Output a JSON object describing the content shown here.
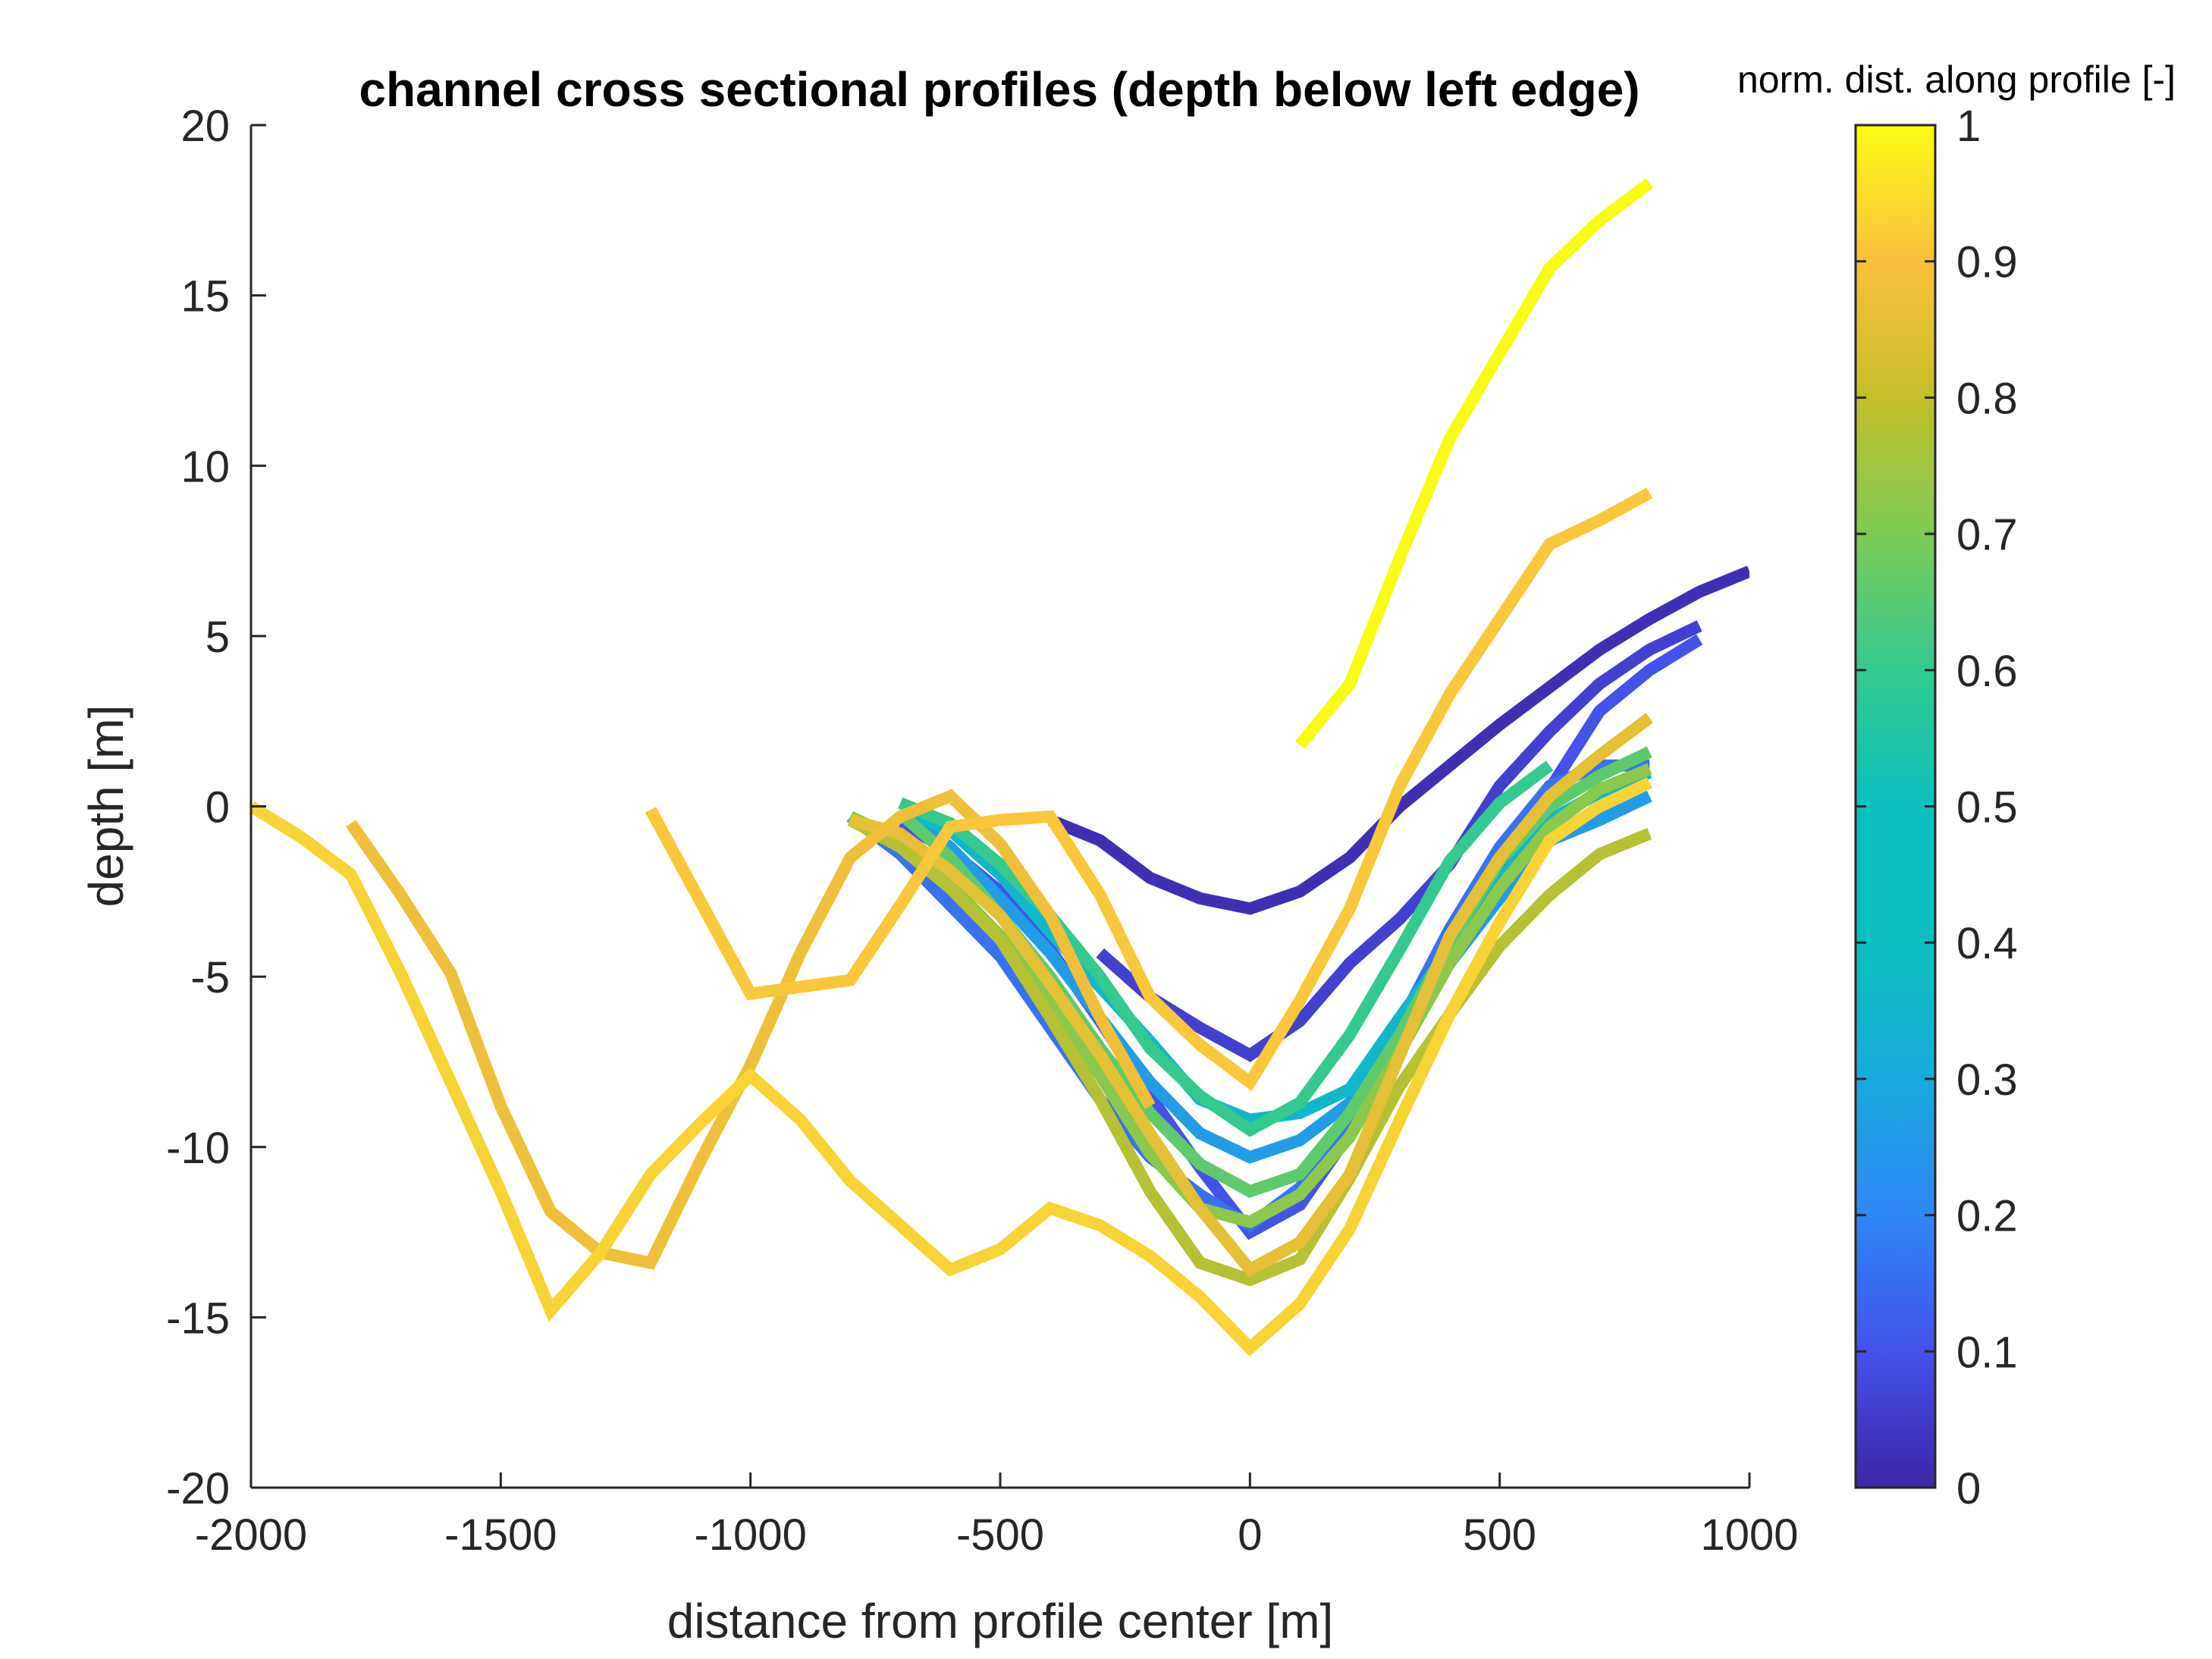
{
  "chart_data": {
    "type": "line",
    "title": "channel cross sectional profiles (depth below left edge)",
    "xlabel": "distance from profile center [m]",
    "ylabel": "depth [m]",
    "xlim": [
      -2000,
      1000
    ],
    "ylim": [
      -20,
      20
    ],
    "xticks": [
      -2000,
      -1500,
      -1000,
      -500,
      0,
      500,
      1000
    ],
    "yticks": [
      -20,
      -15,
      -10,
      -5,
      0,
      5,
      10,
      15,
      20
    ],
    "xtick_labels": [
      "-2000",
      "-1500",
      "-1000",
      "-500",
      "0",
      "500",
      "1000"
    ],
    "ytick_labels": [
      "-20",
      "-15",
      "-10",
      "-5",
      "0",
      "5",
      "10",
      "15",
      "20"
    ],
    "grid": false,
    "colorbar": {
      "label": "norm. dist. along profile [-]",
      "range": [
        0,
        1
      ],
      "ticks": [
        0,
        0.1,
        0.2,
        0.3,
        0.4,
        0.5,
        0.6,
        0.7,
        0.8,
        0.9,
        1
      ],
      "tick_labels": [
        "0",
        "0.1",
        "0.2",
        "0.3",
        "0.4",
        "0.5",
        "0.6",
        "0.7",
        "0.8",
        "0.9",
        "1"
      ],
      "colormap": [
        "#3e26a8",
        "#4352e9",
        "#2e87f7",
        "#1aaadd",
        "#0bbfbd",
        "#34c98f",
        "#7ccb55",
        "#c4bf2a",
        "#fbbf3e",
        "#f8d334",
        "#f9fb15"
      ]
    },
    "series": [
      {
        "color_value": 0.02,
        "x": [
          -400,
          -300,
          -200,
          -100,
          0,
          100,
          200,
          300,
          400,
          500,
          600,
          700,
          800,
          900,
          1000
        ],
        "y": [
          -0.4,
          -1.0,
          -2.1,
          -2.7,
          -3.0,
          -2.5,
          -1.5,
          0.0,
          1.2,
          2.4,
          3.5,
          4.6,
          5.5,
          6.3,
          6.9
        ]
      },
      {
        "color_value": 0.06,
        "x": [
          -300,
          -200,
          -100,
          0,
          100,
          200,
          300,
          400,
          500,
          600,
          700,
          800,
          900
        ],
        "y": [
          -4.3,
          -5.6,
          -6.5,
          -7.3,
          -6.3,
          -4.6,
          -3.3,
          -1.7,
          0.6,
          2.2,
          3.6,
          4.6,
          5.3
        ]
      },
      {
        "color_value": 0.1,
        "x": [
          -700,
          -600,
          -500,
          -400,
          -300,
          -200,
          -100,
          0,
          100,
          200,
          300,
          400,
          500,
          600,
          700,
          800,
          900
        ],
        "y": [
          -0.5,
          -1.3,
          -2.5,
          -4.2,
          -6.3,
          -8.5,
          -10.6,
          -12.5,
          -11.7,
          -9.6,
          -7.2,
          -4.5,
          -1.7,
          0.5,
          2.8,
          4.0,
          4.9
        ]
      },
      {
        "color_value": 0.16,
        "x": [
          -800,
          -700,
          -600,
          -500,
          -400,
          -300,
          -200,
          -100,
          0,
          100,
          200,
          300,
          400,
          500,
          600,
          700,
          800
        ],
        "y": [
          -0.3,
          -1.4,
          -2.9,
          -4.4,
          -6.5,
          -8.6,
          -10.3,
          -11.4,
          -12.3,
          -11.2,
          -9.2,
          -6.4,
          -3.6,
          -1.2,
          0.6,
          1.2,
          1.2
        ]
      },
      {
        "color_value": 0.26,
        "x": [
          -700,
          -600,
          -500,
          -400,
          -300,
          -200,
          -100,
          0,
          100,
          200,
          300,
          400,
          500,
          600,
          700,
          800
        ],
        "y": [
          -0.1,
          -1.2,
          -2.7,
          -4.3,
          -6.2,
          -8.1,
          -9.6,
          -10.3,
          -9.8,
          -8.7,
          -6.8,
          -4.6,
          -2.7,
          -1.0,
          -0.4,
          0.3
        ]
      },
      {
        "color_value": 0.36,
        "x": [
          -700,
          -600,
          -500,
          -400,
          -300,
          -200,
          -100,
          0,
          100,
          200,
          300,
          400,
          500,
          600,
          700,
          800
        ],
        "y": [
          -0.1,
          -0.7,
          -2.0,
          -3.7,
          -5.3,
          -6.9,
          -8.6,
          -9.2,
          -9.0,
          -8.3,
          -6.2,
          -4.2,
          -2.2,
          -0.4,
          0.4,
          1.0
        ]
      },
      {
        "color_value": 0.5,
        "x": [
          -700,
          -600,
          -500,
          -400,
          -300,
          -200,
          -100,
          0,
          100,
          200,
          300,
          400,
          500,
          600
        ],
        "y": [
          0.1,
          -0.5,
          -1.7,
          -3.2,
          -5.0,
          -7.1,
          -8.5,
          -9.5,
          -8.7,
          -6.7,
          -4.2,
          -1.6,
          0.1,
          1.2
        ]
      },
      {
        "color_value": 0.56,
        "x": [
          -700,
          -600,
          -500,
          -400,
          -300,
          -200,
          -100,
          0,
          100,
          200,
          300,
          400,
          500,
          600,
          700,
          800
        ],
        "y": [
          -0.2,
          -1.5,
          -3.2,
          -5.0,
          -7.1,
          -9.0,
          -10.5,
          -11.3,
          -10.8,
          -9.0,
          -6.7,
          -4.0,
          -1.6,
          0.0,
          0.9,
          1.6
        ]
      },
      {
        "color_value": 0.62,
        "x": [
          -800,
          -700,
          -600,
          -500,
          -400,
          -300,
          -200,
          -100,
          0,
          100,
          200,
          300,
          400,
          500,
          600,
          700,
          800
        ],
        "y": [
          -0.3,
          -1.0,
          -2.3,
          -3.8,
          -5.8,
          -7.9,
          -10.2,
          -11.8,
          -12.2,
          -11.4,
          -9.7,
          -7.2,
          -4.6,
          -2.4,
          -0.6,
          0.5,
          1.1
        ]
      },
      {
        "color_value": 0.68,
        "x": [
          -800,
          -700,
          -600,
          -500,
          -400,
          -300,
          -200,
          -100,
          0,
          100,
          200,
          300,
          400,
          500,
          600,
          700,
          800
        ],
        "y": [
          -0.4,
          -1.2,
          -2.4,
          -3.9,
          -6.2,
          -8.6,
          -11.3,
          -13.4,
          -13.9,
          -13.3,
          -10.9,
          -8.2,
          -6.1,
          -4.1,
          -2.6,
          -1.4,
          -0.8
        ]
      },
      {
        "color_value": 0.76,
        "x": [
          -800,
          -700,
          -600,
          -500,
          -400,
          -300,
          -200,
          -100,
          0,
          100,
          200,
          300,
          400,
          500,
          600,
          700,
          800
        ],
        "y": [
          -0.4,
          -0.8,
          -1.9,
          -3.2,
          -5.2,
          -7.3,
          -9.6,
          -11.8,
          -13.6,
          -12.8,
          -10.8,
          -7.3,
          -3.8,
          -1.5,
          0.3,
          1.5,
          2.6
        ]
      },
      {
        "color_value": 0.78,
        "x": [
          -1800,
          -1700,
          -1600,
          -1500,
          -1400,
          -1300,
          -1200,
          -1100,
          -1000,
          -900,
          -800,
          -700,
          -600,
          -500,
          -400,
          -300,
          -200
        ],
        "y": [
          -0.5,
          -2.6,
          -4.9,
          -8.8,
          -11.9,
          -13.1,
          -13.4,
          -10.4,
          -7.6,
          -4.3,
          -1.5,
          -0.3,
          0.3,
          -1.1,
          -3.2,
          -6.2,
          -8.8
        ]
      },
      {
        "color_value": 0.84,
        "x": [
          -1200,
          -1100,
          -1000,
          -900,
          -800,
          -700,
          -600,
          -500,
          -400,
          -300,
          -200,
          -100,
          0,
          100,
          200,
          300,
          400,
          500,
          600,
          700,
          800
        ],
        "y": [
          -0.1,
          -2.8,
          -5.5,
          -5.3,
          -5.1,
          -2.9,
          -0.6,
          -0.4,
          -0.3,
          -2.6,
          -5.6,
          -7.0,
          -8.1,
          -5.7,
          -3.0,
          0.6,
          3.3,
          5.5,
          7.7,
          8.4,
          9.2
        ]
      },
      {
        "color_value": 0.9,
        "x": [
          -2000,
          -1900,
          -1800,
          -1700,
          -1600,
          -1500,
          -1400,
          -1300,
          -1200,
          -1100,
          -1000,
          -900,
          -800,
          -700,
          -600,
          -500,
          -400,
          -300,
          -200,
          -100,
          0,
          100,
          200,
          300,
          400,
          500,
          600,
          700,
          800
        ],
        "y": [
          0.0,
          -0.9,
          -2.0,
          -4.9,
          -8.1,
          -11.3,
          -14.8,
          -13.1,
          -10.8,
          -9.3,
          -7.9,
          -9.2,
          -11.0,
          -12.3,
          -13.6,
          -13.0,
          -11.8,
          -12.3,
          -13.2,
          -14.4,
          -15.9,
          -14.6,
          -12.4,
          -9.2,
          -6.1,
          -3.4,
          -1.0,
          0.0,
          0.7
        ]
      },
      {
        "color_value": 1.0,
        "x": [
          100,
          200,
          300,
          400,
          500,
          600,
          700,
          800
        ],
        "y": [
          1.8,
          3.6,
          7.3,
          10.8,
          13.3,
          15.8,
          17.2,
          18.3
        ]
      }
    ]
  }
}
